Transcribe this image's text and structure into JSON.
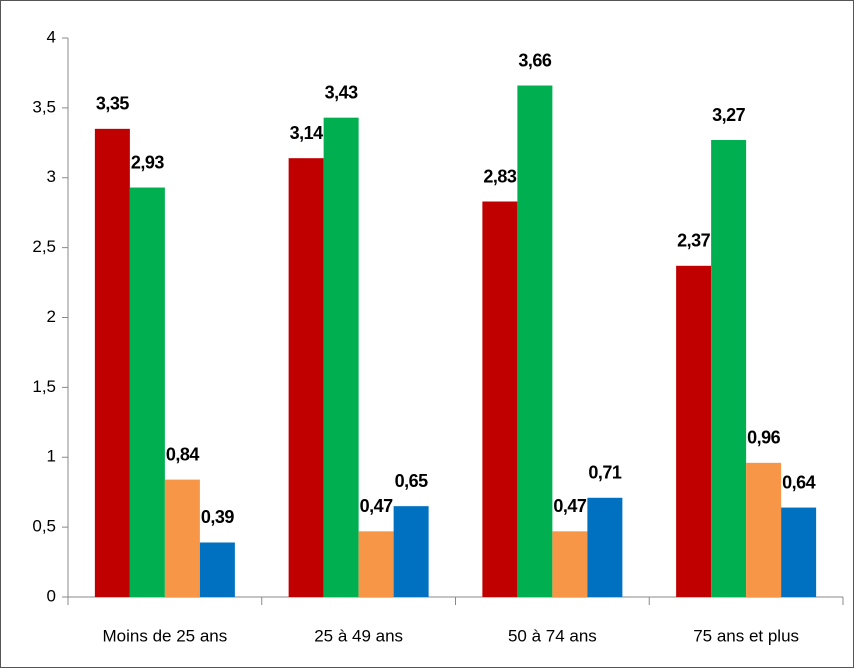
{
  "chart_data": {
    "type": "bar",
    "categories": [
      "Moins de 25 ans",
      "25 à 49 ans",
      "50 à 74 ans",
      "75 ans et plus"
    ],
    "series": [
      {
        "color": "#c00000",
        "values": [
          3.35,
          3.14,
          2.83,
          2.37
        ],
        "value_labels": [
          "3,35",
          "3,14",
          "2,83",
          "2,37"
        ]
      },
      {
        "color": "#00b050",
        "values": [
          2.93,
          3.43,
          3.66,
          3.27
        ],
        "value_labels": [
          "2,93",
          "3,43",
          "3,66",
          "3,27"
        ]
      },
      {
        "color": "#f79646",
        "values": [
          0.84,
          0.47,
          0.47,
          0.96
        ],
        "value_labels": [
          "0,84",
          "0,47",
          "0,47",
          "0,96"
        ]
      },
      {
        "color": "#0070c0",
        "values": [
          0.39,
          0.65,
          0.71,
          0.64
        ],
        "value_labels": [
          "0,39",
          "0,65",
          "0,71",
          "0,64"
        ]
      }
    ],
    "ylim": [
      0,
      4
    ],
    "yticks": [
      0,
      {
        "value": 0.5,
        "label": "0,5"
      },
      1,
      {
        "value": 1.5,
        "label": "1,5"
      },
      2,
      {
        "value": 2.5,
        "label": "2,5"
      },
      3,
      {
        "value": 3.5,
        "label": "3,5"
      },
      4
    ],
    "grid": false
  }
}
